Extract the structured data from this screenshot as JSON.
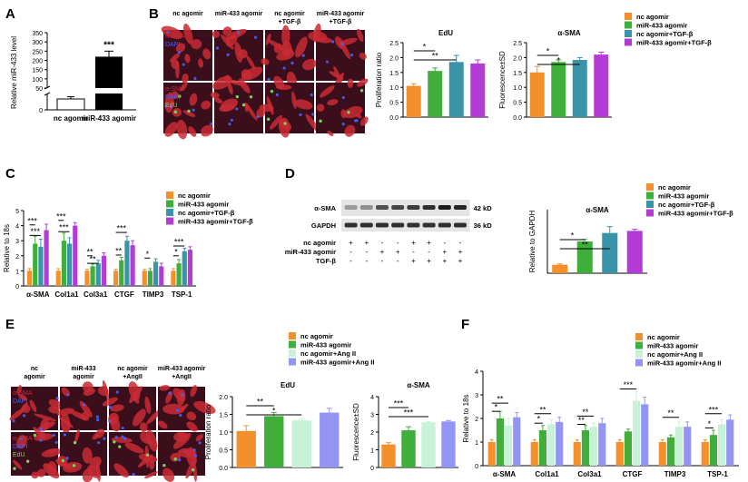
{
  "colors": {
    "orange": "#f4902c",
    "green": "#3fae3a",
    "teal": "#3a94a8",
    "purple": "#b43cd6",
    "lightgreen": "#c8f2d8",
    "lavender": "#9494f4",
    "black": "#000000",
    "white": "#ffffff",
    "cell_red": "#c82a34",
    "cell_dark": "#3a0e1a",
    "dapi_blue": "#4860ff",
    "edu_green": "#7cd060"
  },
  "panels": {
    "A": {
      "letter": "A",
      "chart_data": {
        "type": "bar",
        "ylabel": "Relative miR-433 level",
        "ylim": [
          0,
          350
        ],
        "yticks": [
          0,
          50,
          100,
          150,
          200,
          250,
          300,
          350
        ],
        "categories": [
          "nc agomir",
          "miR-433 agomir"
        ],
        "values": [
          1,
          220
        ],
        "errors": [
          0.2,
          30
        ],
        "fills": [
          "white",
          "black"
        ],
        "significance": "***",
        "axis_break": {
          "lower": [
            0,
            1.5
          ],
          "upper": [
            50,
            350
          ]
        }
      }
    },
    "B": {
      "letter": "B",
      "image": {
        "column_headers": [
          "nc agomir",
          "miR-433 agomir",
          "nc agomir\n+TGF-β",
          "miR-433 agomir\n+TGF-β"
        ],
        "row1_labels": [
          "α-SMA",
          "DAPI"
        ],
        "row2_labels": [
          "α-SMA",
          "DAPI",
          "EdU"
        ]
      },
      "legend": [
        "nc agomir",
        "miR-433 agomir",
        "nc agomir+TGF-β",
        "miR-433 agomir+TGF-β"
      ],
      "edu": {
        "chart_data": {
          "type": "bar",
          "title": "EdU",
          "ylabel": "Proliferation ratio",
          "ylim": [
            0,
            2.5
          ],
          "yticks": [
            0.0,
            0.5,
            1.0,
            1.5,
            2.0,
            2.5
          ],
          "categories": [
            "nc agomir",
            "miR-433 agomir",
            "nc agomir+TGF-β",
            "miR-433 agomir+TGF-β"
          ],
          "values": [
            1.05,
            1.55,
            1.85,
            1.8
          ],
          "errors": [
            0.07,
            0.1,
            0.22,
            0.12
          ],
          "significance": [
            {
              "from": 0,
              "to": 1,
              "label": "*"
            },
            {
              "from": 0,
              "to": 2,
              "label": "**"
            }
          ]
        }
      },
      "asma": {
        "chart_data": {
          "type": "bar",
          "title": "α-SMA",
          "ylabel": "Fluorescence±SD",
          "ylim": [
            0,
            2.5
          ],
          "yticks": [
            0.0,
            0.5,
            1.0,
            1.5,
            2.0,
            2.5
          ],
          "categories": [
            "nc agomir",
            "miR-433 agomir",
            "nc agomir+TGF-β",
            "miR-433 agomir+TGF-β"
          ],
          "values": [
            1.5,
            1.85,
            1.92,
            2.1
          ],
          "errors": [
            0.2,
            0.07,
            0.08,
            0.08
          ],
          "significance": [
            {
              "from": 0,
              "to": 1,
              "label": "*"
            },
            {
              "from": 0,
              "to": 2,
              "label": "*"
            }
          ]
        }
      }
    },
    "C": {
      "letter": "C",
      "legend": [
        "nc agomir",
        "miR-433 agomir",
        "nc agomir+TGF-β",
        "miR-433 agomir+TGF-β"
      ],
      "chart_data": {
        "type": "bar",
        "ylabel": "Relative to 18s",
        "ylim": [
          0,
          5
        ],
        "yticks": [
          0,
          1,
          2,
          3,
          4,
          5
        ],
        "categories": [
          "α-SMA",
          "Col1a1",
          "Col3a1",
          "CTGF",
          "TIMP3",
          "TSP-1"
        ],
        "series": [
          {
            "name": "nc agomir",
            "values": [
              1.0,
              1.0,
              1.0,
              1.0,
              1.0,
              1.0
            ],
            "errors": [
              0.15,
              0.15,
              0.1,
              0.1,
              0.1,
              0.15
            ]
          },
          {
            "name": "miR-433 agomir",
            "values": [
              2.8,
              3.0,
              1.3,
              1.7,
              1.0,
              1.5
            ],
            "errors": [
              0.5,
              0.5,
              0.15,
              0.2,
              0.15,
              0.25
            ]
          },
          {
            "name": "nc agomir+TGF-β",
            "values": [
              2.6,
              2.8,
              1.5,
              3.0,
              1.6,
              2.3
            ],
            "errors": [
              0.5,
              0.4,
              0.2,
              0.3,
              0.2,
              0.2
            ]
          },
          {
            "name": "miR-433 agomir+TGF-β",
            "values": [
              3.7,
              4.0,
              2.0,
              2.7,
              1.3,
              2.4
            ],
            "errors": [
              0.4,
              0.2,
              0.2,
              0.3,
              0.2,
              0.2
            ]
          }
        ],
        "significance": [
          {
            "group": 0,
            "from": 0,
            "to": 1,
            "label": "***",
            "level": 4.05
          },
          {
            "group": 0,
            "from": 0,
            "to": 2,
            "label": "***",
            "level": 3.35
          },
          {
            "group": 1,
            "from": 0,
            "to": 1,
            "label": "***",
            "level": 4.35
          },
          {
            "group": 1,
            "from": 0,
            "to": 2,
            "label": "***",
            "level": 3.6
          },
          {
            "group": 2,
            "from": 0,
            "to": 1,
            "label": "**",
            "level": 2.0
          },
          {
            "group": 2,
            "from": 0,
            "to": 2,
            "label": "**",
            "level": 1.5
          },
          {
            "group": 3,
            "from": 0,
            "to": 1,
            "label": "**",
            "level": 2.05
          },
          {
            "group": 3,
            "from": 0,
            "to": 2,
            "label": "***",
            "level": 3.55
          },
          {
            "group": 4,
            "from": 0,
            "to": 1,
            "label": "*",
            "level": 1.85
          },
          {
            "group": 5,
            "from": 0,
            "to": 1,
            "label": "*",
            "level": 2.0
          },
          {
            "group": 5,
            "from": 0,
            "to": 2,
            "label": "***",
            "level": 2.65
          }
        ]
      }
    },
    "D": {
      "letter": "D",
      "blot": {
        "rows": [
          "α-SMA",
          "GAPDH"
        ],
        "sizes": [
          "42 kD",
          "36 kD"
        ],
        "conditions": [
          {
            "name": "nc agomir",
            "values": [
              "+",
              "+",
              "-",
              "-",
              "+",
              "+",
              "-",
              "-"
            ]
          },
          {
            "name": "miR-433 agomir",
            "values": [
              "-",
              "-",
              "+",
              "+",
              "-",
              "-",
              "+",
              "+"
            ]
          },
          {
            "name": "TGF-β",
            "values": [
              "-",
              "-",
              "-",
              "-",
              "+",
              "+",
              "+",
              "+"
            ]
          }
        ]
      },
      "legend": [
        "nc agomir",
        "miR-433 agomir",
        "nc agomir+TGF-β",
        "miR-433 agomir+TGF-β"
      ],
      "chart_data": {
        "type": "bar",
        "title": "α-SMA",
        "ylabel": "Relative to GAPDH",
        "ylim": [
          0,
          1.5
        ],
        "categories": [
          "nc agomir",
          "miR-433 agomir",
          "nc agomir+TGF-β",
          "miR-433 agomir+TGF-β"
        ],
        "values": [
          0.2,
          0.75,
          0.95,
          1.0
        ],
        "errors": [
          0.02,
          0.05,
          0.15,
          0.04
        ],
        "significance": [
          {
            "from": 0,
            "to": 1,
            "label": "*"
          },
          {
            "from": 0,
            "to": 2,
            "label": "**"
          }
        ]
      }
    },
    "E": {
      "letter": "E",
      "image": {
        "column_headers": [
          "nc\nagomir",
          "miR-433\nagomir",
          "nc agomir\n+AngII",
          "miR-433 agomir\n+AngII"
        ],
        "row1_labels": [
          "α-SMA",
          "DAPI"
        ],
        "row2_labels": [
          "α-SMA",
          "DAPI",
          "EdU"
        ]
      },
      "legend": [
        "nc agomir",
        "miR-433 agomir",
        "nc agomir+Ang II",
        "miR-433 agomir+Ang II"
      ],
      "edu": {
        "chart_data": {
          "type": "bar",
          "title": "EdU",
          "ylabel": "Proliferation ratio",
          "ylim": [
            0,
            2.0
          ],
          "yticks": [
            0.0,
            0.5,
            1.0,
            1.5,
            2.0
          ],
          "categories": [
            "nc agomir",
            "miR-433 agomir",
            "nc agomir+Ang II",
            "miR-433 agomir+Ang II"
          ],
          "values": [
            1.03,
            1.45,
            1.33,
            1.55
          ],
          "errors": [
            0.15,
            0.1,
            0.05,
            0.12
          ],
          "significance": [
            {
              "from": 0,
              "to": 1,
              "label": "**"
            },
            {
              "from": 0,
              "to": 2,
              "label": "*"
            }
          ]
        }
      },
      "asma": {
        "chart_data": {
          "type": "bar",
          "title": "α-SMA",
          "ylabel": "Fluorescence±SD",
          "ylim": [
            0,
            4
          ],
          "yticks": [
            0,
            1,
            2,
            3,
            4
          ],
          "categories": [
            "nc agomir",
            "miR-433 agomir",
            "nc agomir+Ang II",
            "miR-433 agomir+Ang II"
          ],
          "values": [
            1.3,
            2.1,
            2.55,
            2.6
          ],
          "errors": [
            0.1,
            0.2,
            0.05,
            0.05
          ],
          "significance": [
            {
              "from": 0,
              "to": 1,
              "label": "***"
            },
            {
              "from": 0,
              "to": 2,
              "label": "***"
            }
          ]
        }
      }
    },
    "F": {
      "letter": "F",
      "legend": [
        "nc agomir",
        "miR-433 agomir",
        "nc agomir+Ang II",
        "miR-433 agomir+Ang II"
      ],
      "chart_data": {
        "type": "bar",
        "ylabel": "Relative to 18s",
        "ylim": [
          0,
          4
        ],
        "yticks": [
          0,
          1,
          2,
          3,
          4
        ],
        "categories": [
          "α-SMA",
          "Col1a1",
          "Col3a1",
          "CTGF",
          "TIMP3",
          "TSP-1"
        ],
        "series": [
          {
            "name": "nc agomir",
            "values": [
              1.0,
              1.0,
              1.0,
              1.0,
              1.0,
              1.0
            ],
            "errors": [
              0.1,
              0.1,
              0.1,
              0.1,
              0.1,
              0.1
            ]
          },
          {
            "name": "miR-433 agomir",
            "values": [
              2.0,
              1.5,
              1.5,
              1.45,
              1.2,
              1.3
            ],
            "errors": [
              0.3,
              0.2,
              0.2,
              0.1,
              0.1,
              0.2
            ]
          },
          {
            "name": "nc agomir+Ang II",
            "values": [
              1.7,
              1.75,
              1.65,
              2.75,
              1.65,
              1.75
            ],
            "errors": [
              0.3,
              0.2,
              0.15,
              0.4,
              0.2,
              0.2
            ]
          },
          {
            "name": "miR-433 agomir+Ang II",
            "values": [
              2.05,
              1.85,
              1.8,
              2.6,
              1.65,
              1.95
            ],
            "errors": [
              0.2,
              0.2,
              0.2,
              0.3,
              0.2,
              0.2
            ]
          }
        ],
        "significance": [
          {
            "group": 0,
            "from": 0,
            "to": 1,
            "label": "*",
            "level": 2.3
          },
          {
            "group": 0,
            "from": 0,
            "to": 2,
            "label": "**",
            "level": 2.65
          },
          {
            "group": 1,
            "from": 0,
            "to": 1,
            "label": "*",
            "level": 1.8
          },
          {
            "group": 1,
            "from": 0,
            "to": 2,
            "label": "**",
            "level": 2.2
          },
          {
            "group": 2,
            "from": 0,
            "to": 1,
            "label": "**",
            "level": 1.75
          },
          {
            "group": 2,
            "from": 0,
            "to": 2,
            "label": "**",
            "level": 2.1
          },
          {
            "group": 3,
            "from": 0,
            "to": 2,
            "label": "***",
            "level": 3.25
          },
          {
            "group": 4,
            "from": 0,
            "to": 2,
            "label": "**",
            "level": 2.05
          },
          {
            "group": 5,
            "from": 0,
            "to": 1,
            "label": "*",
            "level": 1.6
          },
          {
            "group": 5,
            "from": 0,
            "to": 2,
            "label": "***",
            "level": 2.2
          }
        ]
      }
    }
  }
}
